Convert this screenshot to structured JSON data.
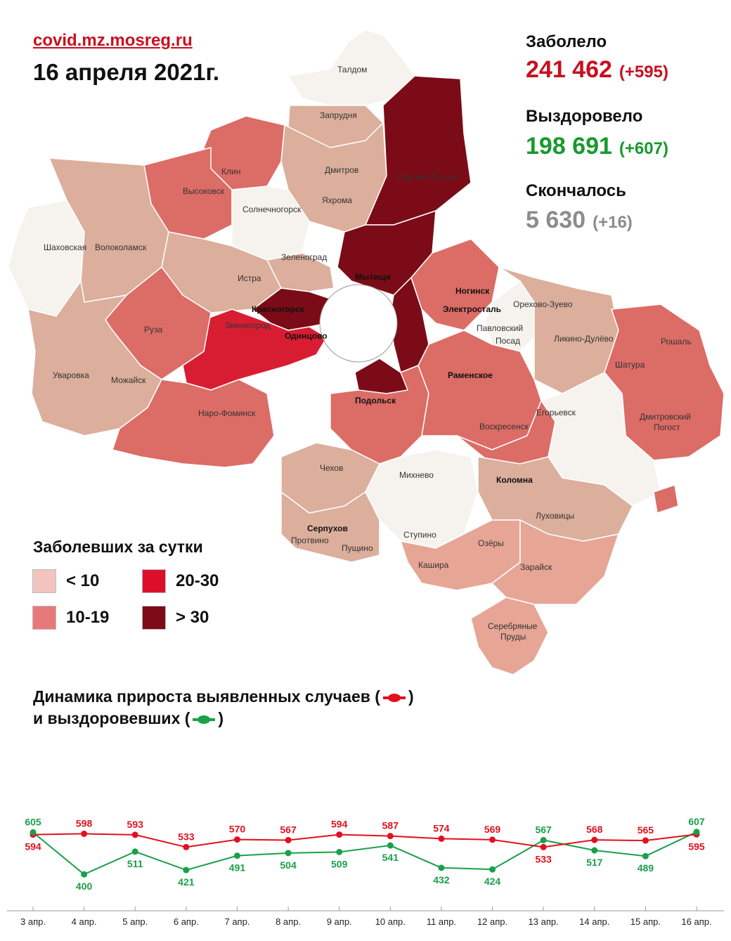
{
  "header": {
    "source": "covid.mz.mosreg.ru",
    "date": "16 апреля 2021г."
  },
  "stats": {
    "infected": {
      "label": "Заболело",
      "value": "241 462",
      "delta": "(+595)",
      "color": "#c8101e"
    },
    "recovered": {
      "label": "Выздоровело",
      "value": "198 691",
      "delta": "(+607)",
      "color": "#179a2e"
    },
    "died": {
      "label": "Скончалось",
      "value": "5 630",
      "delta": "(+16)",
      "color": "#8c8c8c"
    }
  },
  "legend": {
    "title": "Заболевших за сутки",
    "items": [
      {
        "label": "< 10",
        "color": "#f1c4bf"
      },
      {
        "label": "20-30",
        "color": "#dc0f2a"
      },
      {
        "label": "10-19",
        "color": "#e8797a"
      },
      {
        "label": "> 30",
        "color": "#7d0c16"
      }
    ]
  },
  "chart_title": {
    "line1_text": "Динамика прироста выявленных случаев (",
    "line1_end": ")",
    "line2_text": "и выздоровевших (",
    "line2_end": ")"
  },
  "map": {
    "colors": {
      "white": "#f6f3ee",
      "lt": "#dcae9c",
      "pink": "#e7a595",
      "mid": "#dc6c66",
      "red": "#d81d32",
      "dark": "#7b0c17",
      "muted": "#c9a08a"
    },
    "labels": [
      "Талдом",
      "Запрудня",
      "Клин",
      "Дмитров",
      "Сергиев Посад",
      "Высоковск",
      "Яхрома",
      "Солнечногорск",
      "Шаховская",
      "Волоколамск",
      "Зеленоград",
      "Истра",
      "Мытищи",
      "Ногинск",
      "Электросталь",
      "Орехово-Зуево",
      "Красногорск",
      "Павловский",
      "Посад",
      "Ликино-Дулёво",
      "Звенигород",
      "Одинцово",
      "Руза",
      "Рошаль",
      "Шатура",
      "Раменское",
      "Уваровка",
      "Можайск",
      "Наро-Фоминск",
      "Егорьевск",
      "Дмитровский",
      "Погост",
      "Подольск",
      "Воскресенск",
      "Чехов",
      "Михнево",
      "Коломна",
      "Луховицы",
      "Серпухов",
      "Пущино",
      "Ступино",
      "Озёры",
      "Кашира",
      "Зарайск",
      "Серебряные",
      "Пруды",
      "Протвино"
    ]
  },
  "chart_data": {
    "type": "line",
    "categories": [
      "3 апр.",
      "4 апр.",
      "5 апр.",
      "6 апр.",
      "7 апр.",
      "8 апр.",
      "9 апр.",
      "10 апр.",
      "11 апр.",
      "12 апр.",
      "13 апр.",
      "14 апр.",
      "15 апр.",
      "16 апр."
    ],
    "series": [
      {
        "values": [
          594,
          598,
          593,
          533,
          570,
          567,
          594,
          587,
          574,
          569,
          533,
          568,
          565,
          595
        ],
        "color": "#e3101e"
      },
      {
        "values": [
          605,
          400,
          511,
          421,
          491,
          504,
          509,
          541,
          432,
          424,
          567,
          517,
          489,
          607
        ],
        "color": "#1aa04a"
      }
    ],
    "ylim": [
      380,
      620
    ]
  }
}
